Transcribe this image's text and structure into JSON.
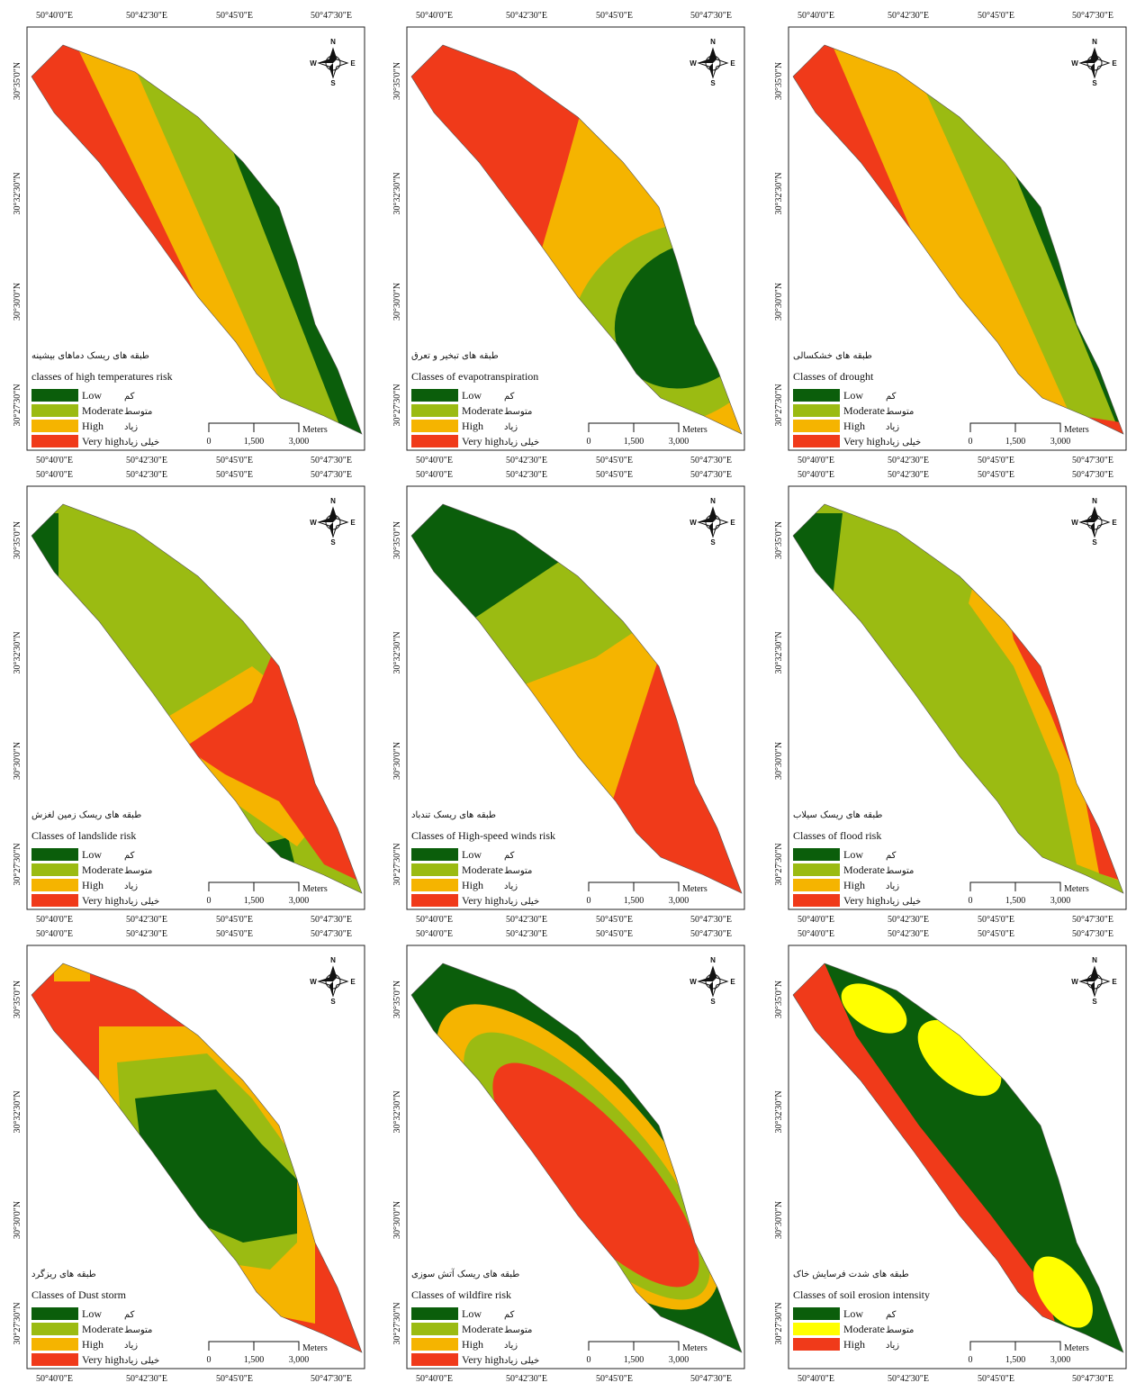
{
  "axes": {
    "lon_labels": [
      "50°40'0\"E",
      "50°42'30\"E",
      "50°45'0\"E",
      "50°47'30\"E"
    ],
    "lat_labels": [
      "30°35'0\"N",
      "30°32'30\"N",
      "30°30'0\"N",
      "30°27'30\"N"
    ]
  },
  "compass": {
    "n": "N",
    "s": "S",
    "e": "E",
    "w": "W"
  },
  "scale_bar": {
    "labels": [
      "0",
      "1,500",
      "3,000"
    ],
    "unit": "Meters"
  },
  "panels": [
    {
      "title_fa": "طبقه های ریسک دماهای بیشینه",
      "title": "classes of high temperatures risk",
      "legend": [
        {
          "label": "Low",
          "label_fa": "کم",
          "color": "#0b5e0b"
        },
        {
          "label": "Moderate",
          "label_fa": "متوسط",
          "color": "#9bbb12"
        },
        {
          "label": "High",
          "label_fa": "زیاد",
          "color": "#f5b400"
        },
        {
          "label": "Very high",
          "label_fa": "خیلی زیاد",
          "color": "#f03a1a"
        }
      ]
    },
    {
      "title_fa": "طبقه های تبخیر و تعرق",
      "title": "Classes of evapotranspiration",
      "legend": [
        {
          "label": "Low",
          "label_fa": "کم",
          "color": "#0b5e0b"
        },
        {
          "label": "Moderate",
          "label_fa": "متوسط",
          "color": "#9bbb12"
        },
        {
          "label": "High",
          "label_fa": "زیاد",
          "color": "#f5b400"
        },
        {
          "label": "Very high",
          "label_fa": "خیلی زیاد",
          "color": "#f03a1a"
        }
      ]
    },
    {
      "title_fa": "طبقه های خشکسالی",
      "title": "Classes of drought",
      "legend": [
        {
          "label": "Low",
          "label_fa": "کم",
          "color": "#0b5e0b"
        },
        {
          "label": "Moderate",
          "label_fa": "متوسط",
          "color": "#9bbb12"
        },
        {
          "label": "High",
          "label_fa": "زیاد",
          "color": "#f5b400"
        },
        {
          "label": "Very high",
          "label_fa": "خیلی زیاد",
          "color": "#f03a1a"
        }
      ]
    },
    {
      "title_fa": "طبقه های ریسک زمین لغزش",
      "title": "Classes of landslide risk",
      "legend": [
        {
          "label": "Low",
          "label_fa": "کم",
          "color": "#0b5e0b"
        },
        {
          "label": "Moderate",
          "label_fa": "متوسط",
          "color": "#9bbb12"
        },
        {
          "label": "High",
          "label_fa": "زیاد",
          "color": "#f5b400"
        },
        {
          "label": "Very high",
          "label_fa": "خیلی زیاد",
          "color": "#f03a1a"
        }
      ]
    },
    {
      "title_fa": "طبقه های ریسک تندباد",
      "title": "Classes of High-speed winds risk",
      "legend": [
        {
          "label": "Low",
          "label_fa": "کم",
          "color": "#0b5e0b"
        },
        {
          "label": "Moderate",
          "label_fa": "متوسط",
          "color": "#9bbb12"
        },
        {
          "label": "High",
          "label_fa": "زیاد",
          "color": "#f5b400"
        },
        {
          "label": "Very high",
          "label_fa": "خیلی زیاد",
          "color": "#f03a1a"
        }
      ]
    },
    {
      "title_fa": "طبقه های ریسک سیلاب",
      "title": "Classes of flood risk",
      "legend": [
        {
          "label": "Low",
          "label_fa": "کم",
          "color": "#0b5e0b"
        },
        {
          "label": "Moderate",
          "label_fa": "متوسط",
          "color": "#9bbb12"
        },
        {
          "label": "High",
          "label_fa": "زیاد",
          "color": "#f5b400"
        },
        {
          "label": "Very high",
          "label_fa": "خیلی زیاد",
          "color": "#f03a1a"
        }
      ]
    },
    {
      "title_fa": "طبقه های ریزگرد",
      "title": "Classes of Dust storm",
      "legend": [
        {
          "label": "Low",
          "label_fa": "کم",
          "color": "#0b5e0b"
        },
        {
          "label": "Moderate",
          "label_fa": "متوسط",
          "color": "#9bbb12"
        },
        {
          "label": "High",
          "label_fa": "زیاد",
          "color": "#f5b400"
        },
        {
          "label": "Very high",
          "label_fa": "خیلی زیاد",
          "color": "#f03a1a"
        }
      ]
    },
    {
      "title_fa": "طبقه های ریسک آتش سوزی",
      "title": "Classes of wildfire risk",
      "legend": [
        {
          "label": "Low",
          "label_fa": "کم",
          "color": "#0b5e0b"
        },
        {
          "label": "Moderate",
          "label_fa": "متوسط",
          "color": "#9bbb12"
        },
        {
          "label": "High",
          "label_fa": "زیاد",
          "color": "#f5b400"
        },
        {
          "label": "Very high",
          "label_fa": "خیلی زیاد",
          "color": "#f03a1a"
        }
      ]
    },
    {
      "title_fa": "طبقه های شدت فرسایش خاک",
      "title": "Classes of soil erosion intensity",
      "legend": [
        {
          "label": "Low",
          "label_fa": "کم",
          "color": "#0b5e0b"
        },
        {
          "label": "Moderate",
          "label_fa": "متوسط",
          "color": "#ffff00"
        },
        {
          "label": "High",
          "label_fa": "زیاد",
          "color": "#f03a1a"
        }
      ]
    }
  ]
}
